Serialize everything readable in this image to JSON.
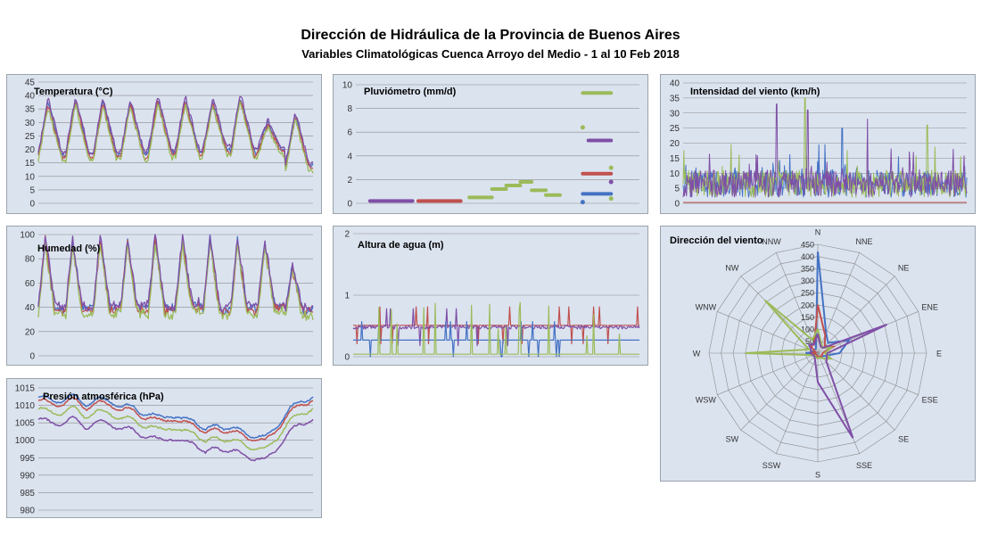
{
  "header": {
    "title": "Dirección de Hidráulica de la Provincia de Buenos Aires",
    "subtitle": "Variables Climatológicas Cuenca Arroyo del Medio - 1 al 10 Feb 2018"
  },
  "colors": {
    "blue": "#4472c4",
    "red": "#c0504d",
    "green": "#9bbb59",
    "purple": "#7f4fa6",
    "panel_bg": "#dbe3ef",
    "grid": "#8c8c8c"
  },
  "chart_data": [
    {
      "id": "temp",
      "type": "line",
      "title": "Temperatura (°C)",
      "ylim": [
        0,
        45
      ],
      "yticks": [
        "0",
        "5",
        "10",
        "15",
        "20",
        "25",
        "30",
        "35",
        "40",
        "45"
      ],
      "x": "10 daily cycles (1 al 10 Feb 2018)",
      "daily_max": [
        38,
        39,
        38,
        38,
        39,
        39,
        38,
        40,
        30,
        33
      ],
      "daily_min": [
        18,
        18,
        18,
        18,
        19,
        19,
        20,
        19,
        20,
        14
      ],
      "series": [
        {
          "color": "blue",
          "offset": 0
        },
        {
          "color": "red",
          "offset": -1
        },
        {
          "color": "green",
          "offset": -2
        },
        {
          "color": "purple",
          "offset": 1
        }
      ]
    },
    {
      "id": "rain",
      "type": "scatter",
      "title": "Pluviómetro (mm/d)",
      "ylim": [
        0,
        10
      ],
      "yticks": [
        "0",
        "2",
        "4",
        "6",
        "8",
        "10"
      ],
      "segments": [
        {
          "color": "purple",
          "y": 0.2,
          "x0": 0.05,
          "x1": 0.2
        },
        {
          "color": "red",
          "y": 0.2,
          "x0": 0.22,
          "x1": 0.37
        },
        {
          "color": "green",
          "y": 0.5,
          "x0": 0.4,
          "x1": 0.48
        },
        {
          "color": "green",
          "y": 1.2,
          "x0": 0.48,
          "x1": 0.53
        },
        {
          "color": "green",
          "y": 1.5,
          "x0": 0.53,
          "x1": 0.58
        },
        {
          "color": "green",
          "y": 1.8,
          "x0": 0.58,
          "x1": 0.62
        },
        {
          "color": "green",
          "y": 1.1,
          "x0": 0.62,
          "x1": 0.67
        },
        {
          "color": "green",
          "y": 0.7,
          "x0": 0.67,
          "x1": 0.72
        },
        {
          "color": "green",
          "y": 9.3,
          "x0": 0.8,
          "x1": 0.9
        },
        {
          "color": "purple",
          "y": 5.3,
          "x0": 0.82,
          "x1": 0.9
        },
        {
          "color": "red",
          "y": 2.5,
          "x0": 0.8,
          "x1": 0.9
        },
        {
          "color": "blue",
          "y": 0.8,
          "x0": 0.8,
          "x1": 0.9
        }
      ],
      "points": [
        {
          "color": "green",
          "x": 0.8,
          "y": 6.4
        },
        {
          "color": "green",
          "x": 0.9,
          "y": 3.0
        },
        {
          "color": "green",
          "x": 0.9,
          "y": 0.4
        },
        {
          "color": "blue",
          "x": 0.8,
          "y": 0.1
        },
        {
          "color": "purple",
          "x": 0.9,
          "y": 1.8
        }
      ]
    },
    {
      "id": "wind",
      "type": "line",
      "title": "Intensidad del viento (km/h)",
      "ylim": [
        0,
        40
      ],
      "yticks": [
        "0",
        "5",
        "10",
        "15",
        "20",
        "25",
        "30",
        "35",
        "40"
      ],
      "x": "1 al 10 Feb 2018 (high-frequency samples)",
      "peaks": [
        {
          "color": "purple",
          "x": 0.33,
          "y": 33
        },
        {
          "color": "green",
          "x": 0.43,
          "y": 35
        },
        {
          "color": "blue",
          "x": 0.56,
          "y": 25
        },
        {
          "color": "purple",
          "x": 0.65,
          "y": 28
        },
        {
          "color": "green",
          "x": 0.86,
          "y": 26
        },
        {
          "color": "purple",
          "x": 0.44,
          "y": 31
        }
      ],
      "series": [
        {
          "color": "blue"
        },
        {
          "color": "red"
        },
        {
          "color": "green"
        },
        {
          "color": "purple"
        }
      ]
    },
    {
      "id": "hum",
      "type": "line",
      "title": "Humedad (%)",
      "ylim": [
        0,
        100
      ],
      "yticks": [
        "0",
        "20",
        "40",
        "60",
        "80",
        "100"
      ],
      "x": "10 daily cycles (1 al 10 Feb 2018)",
      "daily_max": [
        96,
        93,
        95,
        93,
        96,
        95,
        95,
        93,
        90,
        72
      ],
      "daily_min": [
        37,
        37,
        38,
        38,
        37,
        40,
        36,
        37,
        40,
        36
      ],
      "series": [
        {
          "color": "blue",
          "offset": 2
        },
        {
          "color": "red",
          "offset": 0
        },
        {
          "color": "green",
          "offset": -3
        },
        {
          "color": "purple",
          "offset": 4
        }
      ]
    },
    {
      "id": "water",
      "type": "line",
      "title": "Altura de agua (m)",
      "ylim": [
        0,
        2
      ],
      "yticks": [
        "0",
        "1",
        "2"
      ],
      "x": "1 al 10 Feb 2018",
      "series": [
        {
          "color": "red",
          "base": 0.51
        },
        {
          "color": "purple",
          "base": 0.48
        },
        {
          "color": "blue",
          "base": 0.27
        },
        {
          "color": "green",
          "base": 0.04
        }
      ]
    },
    {
      "id": "pres",
      "type": "line",
      "title": "Presión atmosférica (hPa)",
      "ylim": [
        980,
        1015
      ],
      "yticks": [
        "980",
        "985",
        "990",
        "995",
        "1000",
        "1005",
        "1010",
        "1015"
      ],
      "x": "1 al 10 Feb 2018",
      "profile": [
        1011,
        1010,
        1010,
        1011,
        1009,
        1010,
        1010,
        1008,
        1008,
        1006,
        1005,
        1006,
        1004,
        1005,
        1001,
        1003,
        1002,
        1001,
        1000,
        999,
        1003,
        1007,
        1010,
        1011
      ],
      "series": [
        {
          "color": "blue",
          "offset": 1.5
        },
        {
          "color": "red",
          "offset": 0.5
        },
        {
          "color": "green",
          "offset": -2
        },
        {
          "color": "purple",
          "offset": -5
        }
      ]
    },
    {
      "id": "dir",
      "type": "radar",
      "title": "Dirección del viento",
      "rlim": [
        0,
        450
      ],
      "rticks": [
        "0",
        "50",
        "100",
        "150",
        "200",
        "250",
        "300",
        "350",
        "400",
        "450"
      ],
      "directions": [
        "N",
        "NNE",
        "NE",
        "ENE",
        "E",
        "ESE",
        "SE",
        "SSE",
        "S",
        "SSW",
        "SW",
        "WSW",
        "W",
        "WNW",
        "NW",
        "NNW"
      ],
      "series": [
        {
          "color": "blue",
          "values": [
            420,
            90,
            60,
            140,
            90,
            30,
            20,
            20,
            20,
            10,
            10,
            15,
            50,
            15,
            20,
            20
          ]
        },
        {
          "color": "red",
          "values": [
            200,
            80,
            40,
            70,
            20,
            20,
            20,
            15,
            20,
            10,
            10,
            10,
            30,
            10,
            40,
            40
          ]
        },
        {
          "color": "green",
          "values": [
            100,
            40,
            30,
            60,
            30,
            60,
            30,
            20,
            20,
            20,
            15,
            20,
            300,
            40,
            310,
            60
          ]
        },
        {
          "color": "purple",
          "values": [
            80,
            30,
            30,
            310,
            40,
            40,
            50,
            380,
            120,
            30,
            20,
            20,
            30,
            30,
            50,
            40
          ]
        }
      ]
    }
  ]
}
